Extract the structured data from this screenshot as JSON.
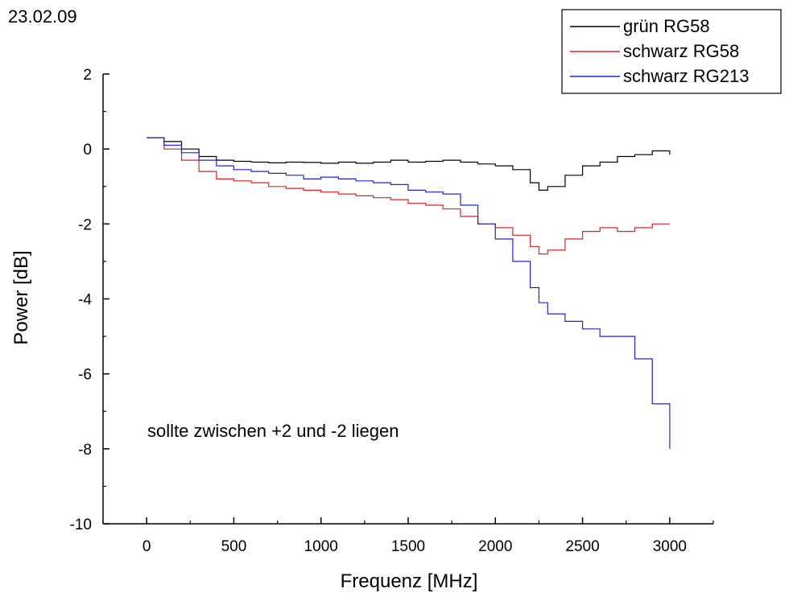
{
  "date_stamp": "23.02.09",
  "chart_data": {
    "type": "line",
    "title": "",
    "xlabel": "Frequenz [MHz]",
    "ylabel": "Power [dB]",
    "xlim": [
      -250,
      3250
    ],
    "ylim": [
      -10,
      2
    ],
    "x_ticks": [
      0,
      500,
      1000,
      1500,
      2000,
      2500,
      3000
    ],
    "x_tick_labels": [
      "0",
      "500",
      "1000",
      "1500",
      "2000",
      "2500",
      "3000"
    ],
    "y_ticks": [
      -10,
      -8,
      -6,
      -4,
      -2,
      0,
      2
    ],
    "y_tick_labels": [
      "-10",
      "-8",
      "-6",
      "-4",
      "-2",
      "0",
      "2"
    ],
    "grid": false,
    "legend_position": "top-right",
    "step": true,
    "annotation": "sollte zwischen +2 und -2 liegen",
    "x": [
      0,
      100,
      200,
      300,
      400,
      500,
      600,
      700,
      800,
      900,
      1000,
      1100,
      1200,
      1300,
      1400,
      1500,
      1600,
      1700,
      1800,
      1900,
      2000,
      2100,
      2200,
      2250,
      2300,
      2400,
      2500,
      2600,
      2700,
      2800,
      2900,
      3000
    ],
    "series": [
      {
        "name": "grün RG58",
        "color": "#000000",
        "values": [
          0.3,
          0.2,
          0.0,
          -0.2,
          -0.3,
          -0.33,
          -0.35,
          -0.37,
          -0.35,
          -0.36,
          -0.38,
          -0.35,
          -0.38,
          -0.35,
          -0.3,
          -0.35,
          -0.33,
          -0.3,
          -0.35,
          -0.4,
          -0.45,
          -0.55,
          -0.9,
          -1.1,
          -1.0,
          -0.7,
          -0.45,
          -0.35,
          -0.2,
          -0.15,
          -0.05,
          -0.15
        ]
      },
      {
        "name": "schwarz RG58",
        "color": "#e02020",
        "values": [
          0.3,
          0.0,
          -0.3,
          -0.6,
          -0.8,
          -0.85,
          -0.9,
          -1.0,
          -1.05,
          -1.1,
          -1.15,
          -1.2,
          -1.25,
          -1.3,
          -1.35,
          -1.45,
          -1.5,
          -1.6,
          -1.8,
          -2.0,
          -2.1,
          -2.3,
          -2.6,
          -2.8,
          -2.7,
          -2.4,
          -2.2,
          -2.1,
          -2.2,
          -2.1,
          -2.0,
          -2.0
        ]
      },
      {
        "name": "schwarz RG213",
        "color": "#2020e0",
        "values": [
          0.3,
          0.1,
          -0.1,
          -0.3,
          -0.45,
          -0.55,
          -0.6,
          -0.65,
          -0.7,
          -0.8,
          -0.75,
          -0.8,
          -0.85,
          -0.9,
          -0.95,
          -1.1,
          -1.15,
          -1.2,
          -1.5,
          -2.0,
          -2.4,
          -3.0,
          -3.7,
          -4.1,
          -4.4,
          -4.6,
          -4.8,
          -5.0,
          -5.0,
          -5.6,
          -6.8,
          -8.0
        ]
      }
    ]
  }
}
